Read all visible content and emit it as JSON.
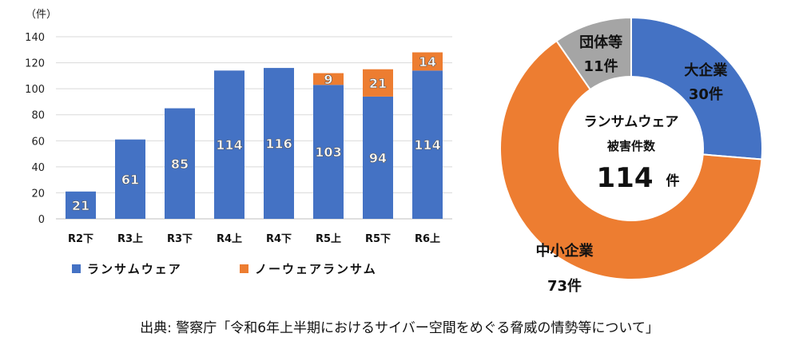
{
  "chart_data": [
    {
      "type": "bar",
      "stacked": true,
      "unit_label": "（件）",
      "categories": [
        "R2下",
        "R3上",
        "R3下",
        "R4上",
        "R4下",
        "R5上",
        "R5下",
        "R6上"
      ],
      "series": [
        {
          "name": "ランサムウェア",
          "color": "#4472C4",
          "values": [
            21,
            61,
            85,
            114,
            116,
            103,
            94,
            114
          ]
        },
        {
          "name": "ノーウェアランサム",
          "color": "#ED7D31",
          "values": [
            null,
            null,
            null,
            null,
            null,
            9,
            21,
            14
          ]
        }
      ],
      "ylim": [
        0,
        140
      ],
      "yticks": [
        0,
        20,
        40,
        60,
        80,
        100,
        120,
        140
      ],
      "grid": true,
      "legend": "bottom"
    },
    {
      "type": "pie",
      "donut": true,
      "slices": [
        {
          "label": "大企業",
          "value": 30,
          "value_label": "30件",
          "color": "#4472C4"
        },
        {
          "label": "中小企業",
          "value": 73,
          "value_label": "73件",
          "color": "#ED7D31"
        },
        {
          "label": "団体等",
          "value": 11,
          "value_label": "11件",
          "color": "#A5A5A5"
        }
      ],
      "center": {
        "line1": "ランサムウェア",
        "line2": "被害件数",
        "total": "114",
        "unit": "件"
      }
    }
  ],
  "source": "出典: 警察庁「令和6年上半期におけるサイバー空間をめぐる脅威の情勢等について」"
}
